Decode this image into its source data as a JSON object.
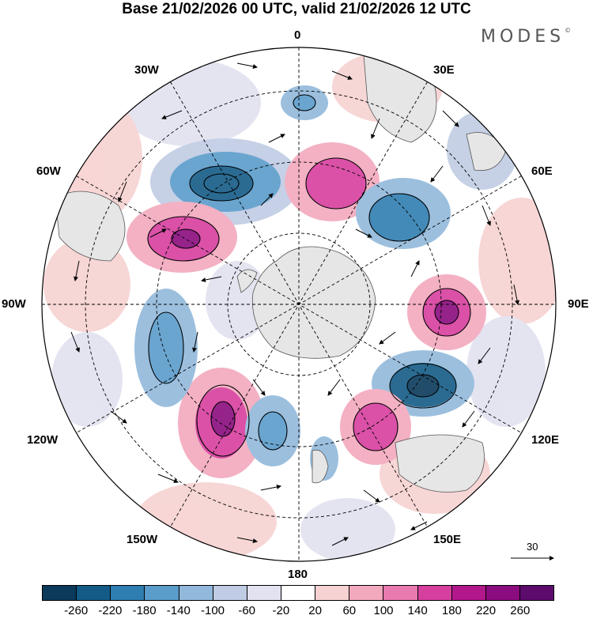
{
  "title": "Base 21/02/2026 00 UTC, valid 21/02/2026 12 UTC",
  "brand": "MODES",
  "brand_mark": "©",
  "longitude_labels": {
    "top": "0",
    "bottom": "180",
    "left": "90W",
    "right": "90E",
    "w30": "30W",
    "e30": "30E",
    "w60": "60W",
    "e60": "60E",
    "w120": "120W",
    "e120": "120E",
    "w150": "150W",
    "e150": "150E"
  },
  "reference_vector": "30",
  "colorbar": {
    "colors": [
      "#0b3a5a",
      "#155b87",
      "#2f7eb1",
      "#5a9cca",
      "#92b9db",
      "#c0cce4",
      "#e2e2f0",
      "#ffffff",
      "#f7d2d2",
      "#f2a9bd",
      "#e87ab0",
      "#d63f9e",
      "#b2178b",
      "#8a0c7e",
      "#5e0b6e"
    ],
    "tick_labels": [
      "-260",
      "-220",
      "-180",
      "-140",
      "-100",
      "-60",
      "-20",
      "20",
      "60",
      "100",
      "140",
      "180",
      "220",
      "260"
    ]
  }
}
